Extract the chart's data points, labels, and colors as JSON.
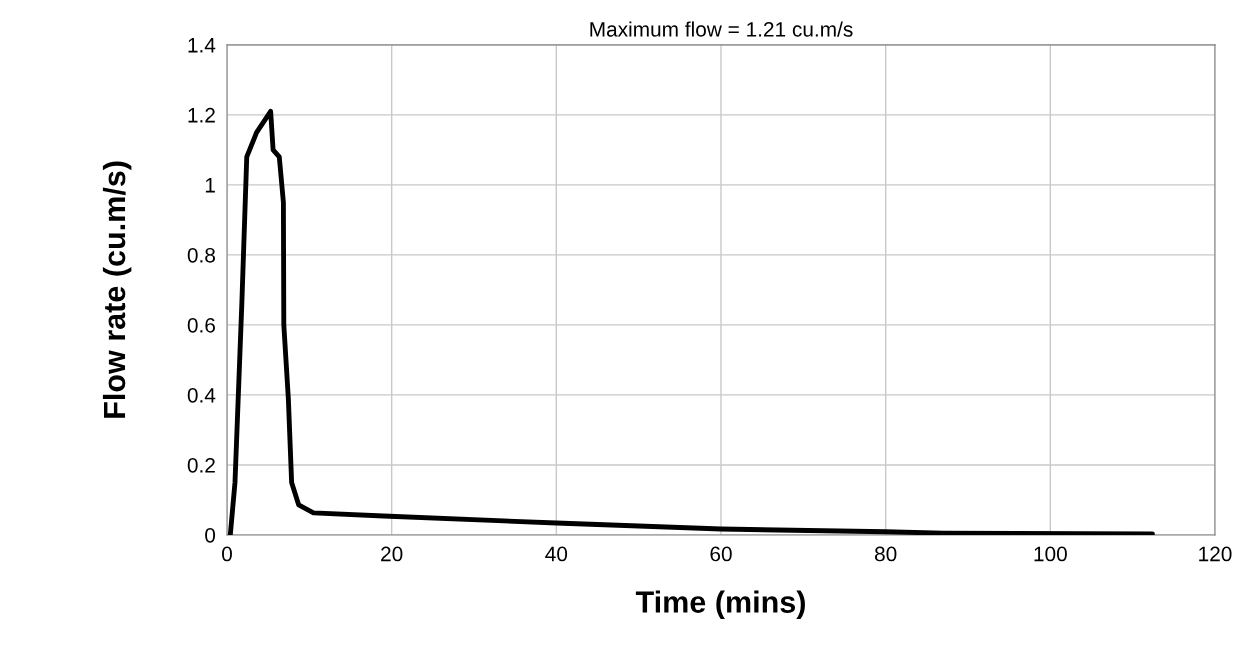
{
  "chart_data": {
    "type": "line",
    "title": "Maximum flow = 1.21 cu.m/s",
    "xlabel": "Time (mins)",
    "ylabel": "Flow rate (cu.m/s)",
    "x": [
      0.4,
      0.97,
      1.8,
      2.4,
      3.6,
      5.3,
      5.6,
      6.35,
      6.85,
      6.9,
      7.45,
      7.85,
      8.7,
      10.5,
      19,
      40,
      60,
      80,
      87,
      112.4
    ],
    "series": [
      {
        "color": "#000000",
        "values": [
          0,
          0.15,
          0.66,
          1.08,
          1.15,
          1.21,
          1.1,
          1.08,
          0.95,
          0.6,
          0.39,
          0.15,
          0.086,
          0.063,
          0.054,
          0.034,
          0.017,
          0.009,
          0.005,
          0.003
        ]
      }
    ],
    "xlim": [
      0,
      120
    ],
    "xticks": [
      0,
      20,
      40,
      60,
      80,
      100,
      120
    ],
    "ylim": [
      0,
      1.4
    ],
    "yticks": [
      0,
      0.2,
      0.4,
      0.6,
      0.8,
      1,
      1.2,
      1.4
    ],
    "grid": true,
    "legend": false,
    "marker": "none",
    "line_style": "solid"
  }
}
